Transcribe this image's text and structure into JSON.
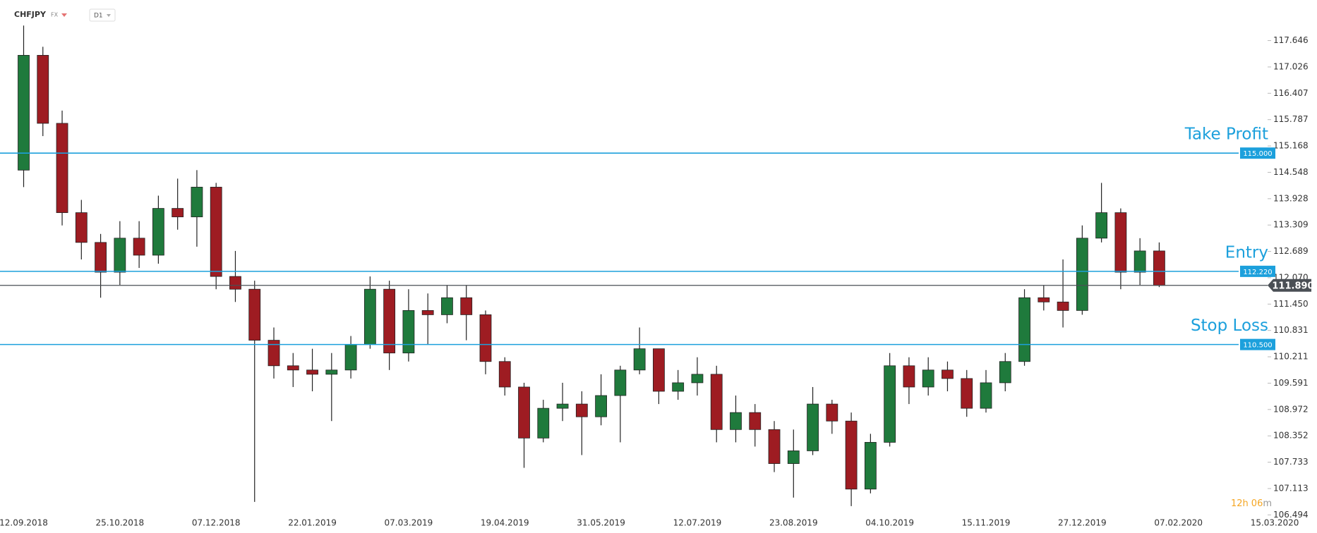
{
  "chart_data": {
    "type": "candlestick",
    "symbol": "CHFJPY",
    "market": "FX",
    "interval": "D1",
    "timer": [
      "12",
      "h",
      "06",
      "m"
    ],
    "categories": [
      "12.09.2018",
      null,
      null,
      null,
      null,
      "25.10.2018",
      null,
      null,
      null,
      null,
      "07.12.2018",
      null,
      null,
      null,
      null,
      "22.01.2019",
      null,
      null,
      null,
      null,
      "07.03.2019",
      null,
      null,
      null,
      null,
      "19.04.2019",
      null,
      null,
      null,
      null,
      "31.05.2019",
      null,
      null,
      null,
      null,
      "12.07.2019",
      null,
      null,
      null,
      null,
      "23.08.2019",
      null,
      null,
      null,
      null,
      "04.10.2019",
      null,
      null,
      null,
      null,
      "15.11.2019",
      null,
      null,
      null,
      null,
      "27.12.2019",
      null,
      null,
      null,
      null,
      "07.02.2020",
      null,
      null,
      null,
      null,
      "15.03.2020"
    ],
    "open": [
      114.6,
      117.3,
      115.7,
      113.6,
      112.9,
      112.2,
      113.0,
      112.6,
      113.7,
      113.5,
      114.2,
      112.1,
      111.8,
      110.6,
      110.0,
      109.9,
      109.8,
      109.9,
      110.5,
      111.8,
      110.3,
      111.3,
      111.2,
      111.6,
      111.2,
      110.1,
      109.5,
      108.3,
      109.0,
      109.1,
      108.8,
      109.3,
      109.9,
      110.4,
      109.4,
      109.6,
      109.8,
      108.5,
      108.9,
      108.5,
      107.7,
      108.0,
      109.1,
      108.7,
      107.1,
      108.2,
      110.0,
      109.5,
      109.9,
      109.7,
      109.0,
      109.6,
      110.1,
      111.6,
      111.5,
      111.3,
      113.0,
      113.6,
      112.2,
      112.7,
      null,
      null,
      null,
      null,
      null,
      null
    ],
    "high": [
      118.0,
      117.5,
      116.0,
      113.9,
      113.1,
      113.4,
      113.4,
      114.0,
      114.4,
      114.6,
      114.3,
      112.7,
      112.0,
      110.9,
      110.3,
      110.4,
      110.3,
      110.7,
      112.1,
      112.0,
      111.8,
      111.7,
      111.9,
      111.9,
      111.3,
      110.2,
      109.6,
      109.2,
      109.6,
      109.4,
      109.8,
      110.0,
      110.9,
      110.4,
      109.9,
      110.2,
      110.0,
      109.3,
      109.1,
      108.7,
      108.5,
      109.5,
      109.2,
      108.9,
      108.4,
      110.3,
      110.2,
      110.2,
      110.1,
      109.9,
      109.9,
      110.3,
      111.8,
      111.9,
      112.5,
      113.3,
      114.3,
      113.7,
      113.0,
      112.9,
      null,
      null,
      null,
      null,
      null,
      null
    ],
    "low": [
      114.2,
      115.4,
      113.3,
      112.5,
      111.6,
      111.9,
      112.3,
      112.4,
      113.2,
      112.8,
      111.8,
      111.5,
      106.8,
      109.7,
      109.5,
      109.4,
      108.7,
      109.7,
      110.4,
      109.9,
      110.1,
      110.5,
      111.0,
      110.6,
      109.8,
      109.3,
      107.6,
      108.2,
      108.7,
      107.9,
      108.6,
      108.2,
      109.8,
      109.1,
      109.2,
      109.3,
      108.2,
      108.2,
      108.1,
      107.5,
      106.9,
      107.9,
      108.4,
      106.7,
      107.0,
      108.1,
      109.1,
      109.3,
      109.4,
      108.8,
      108.9,
      109.4,
      110.0,
      111.3,
      110.9,
      111.2,
      112.9,
      111.8,
      111.9,
      111.85,
      null,
      null,
      null,
      null,
      null,
      null
    ],
    "close": [
      117.3,
      115.7,
      113.6,
      112.9,
      112.2,
      113.0,
      112.6,
      113.7,
      113.5,
      114.2,
      112.1,
      111.8,
      110.6,
      110.0,
      109.9,
      109.8,
      109.9,
      110.5,
      111.8,
      110.3,
      111.3,
      111.2,
      111.6,
      111.2,
      110.1,
      109.5,
      108.3,
      109.0,
      109.1,
      108.8,
      109.3,
      109.9,
      110.4,
      109.4,
      109.6,
      109.8,
      108.5,
      108.9,
      108.5,
      107.7,
      108.0,
      109.1,
      108.7,
      107.1,
      108.2,
      110.0,
      109.5,
      109.9,
      109.7,
      109.0,
      109.6,
      110.1,
      111.6,
      111.5,
      111.3,
      113.0,
      113.6,
      112.2,
      112.7,
      111.89,
      null,
      null,
      null,
      null,
      null,
      null
    ],
    "up_color": "#1f7a3c",
    "down_color": "#9e1c22",
    "ylim": [
      106.3,
      118.6
    ],
    "yticks": [
      117.646,
      117.026,
      116.407,
      115.787,
      115.168,
      114.548,
      113.928,
      113.309,
      112.689,
      {
        "value": 112.07,
        "label": "112.070"
      },
      {
        "value": 111.45,
        "label": "111.450"
      },
      110.831,
      110.211,
      109.591,
      108.972,
      108.352,
      107.733,
      107.113,
      106.494
    ],
    "levels": [
      {
        "name": "Take Profit",
        "value": 115.0,
        "label": "115.000",
        "color": "#1ca0dc"
      },
      {
        "name": "Entry",
        "value": 112.22,
        "label": "112.220",
        "color": "#1ca0dc"
      },
      {
        "name": "Stop Loss",
        "value": 110.5,
        "label": "110.500",
        "color": "#1ca0dc"
      }
    ],
    "last_price": {
      "value": 111.89,
      "label": "111.890",
      "color": "#4a4f55"
    }
  }
}
